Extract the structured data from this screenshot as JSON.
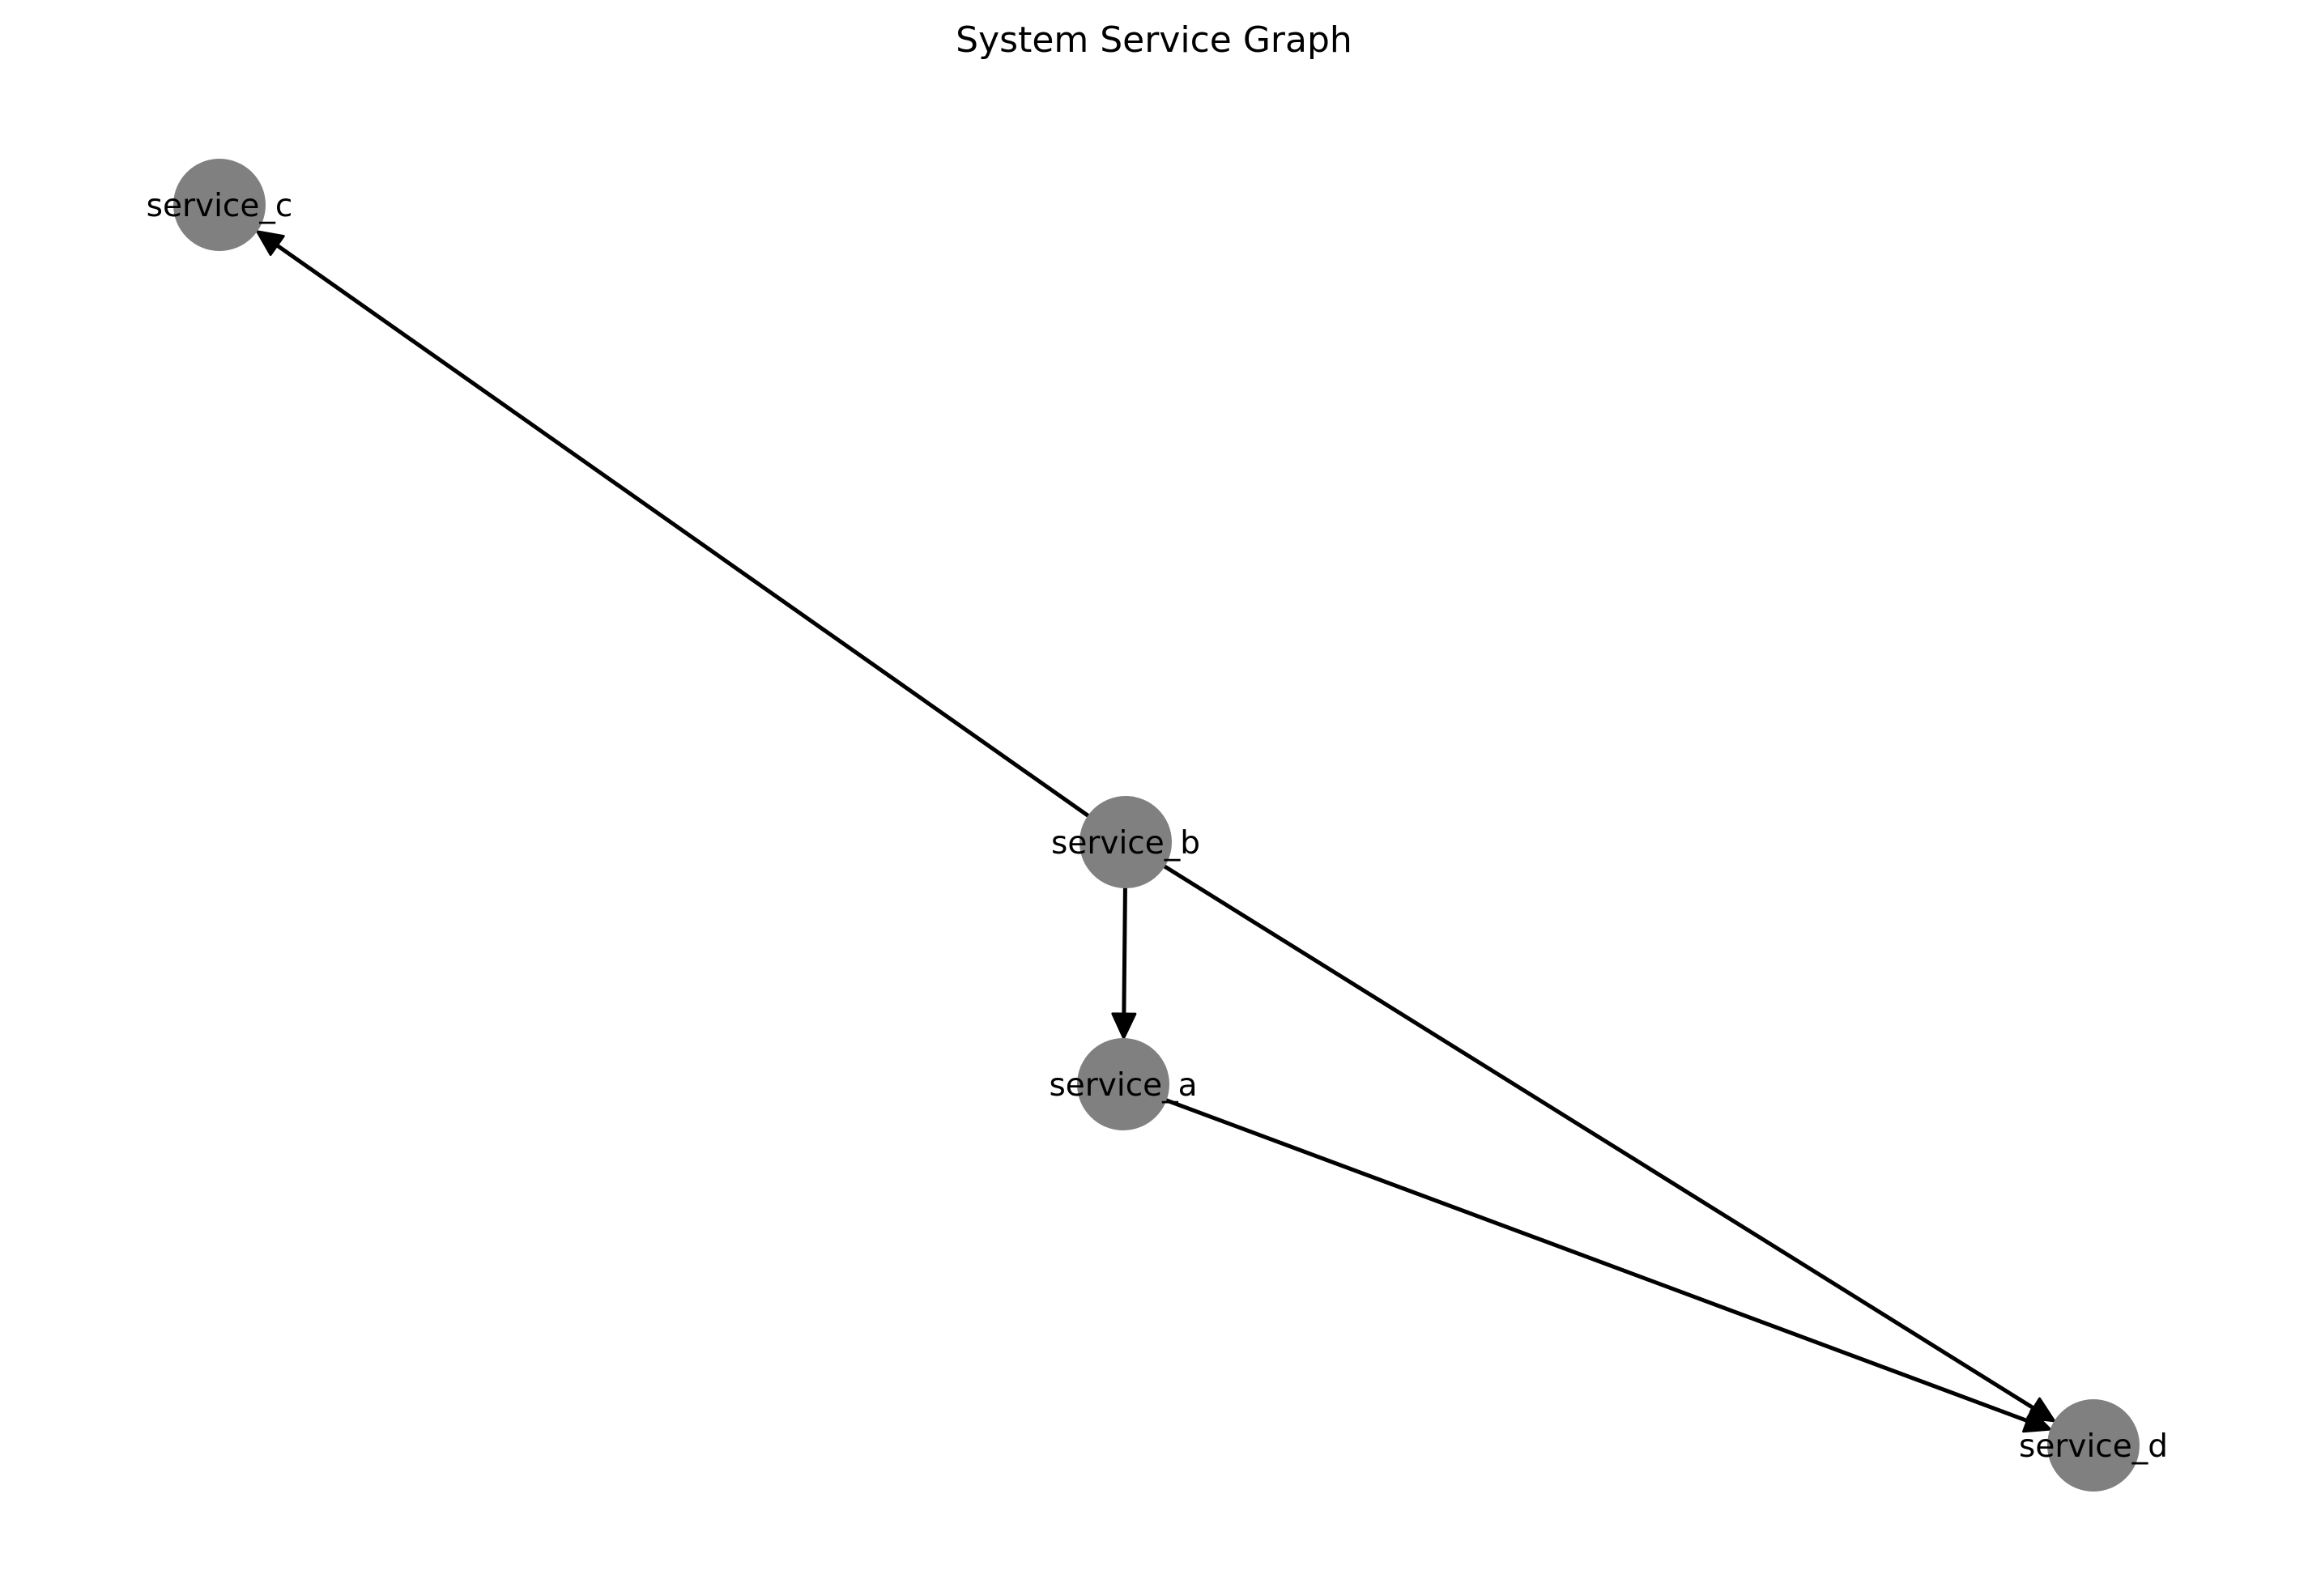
{
  "title": "System Service Graph",
  "node_color": "#808080",
  "edge_color": "#000000",
  "label_color": "#000000",
  "nodes": [
    {
      "id": "service_c",
      "label": "service_c"
    },
    {
      "id": "service_b",
      "label": "service_b"
    },
    {
      "id": "service_a",
      "label": "service_a"
    },
    {
      "id": "service_d",
      "label": "service_d"
    }
  ],
  "edges": [
    {
      "from": "service_b",
      "to": "service_c"
    },
    {
      "from": "service_b",
      "to": "service_a"
    },
    {
      "from": "service_b",
      "to": "service_d"
    },
    {
      "from": "service_a",
      "to": "service_d"
    }
  ]
}
